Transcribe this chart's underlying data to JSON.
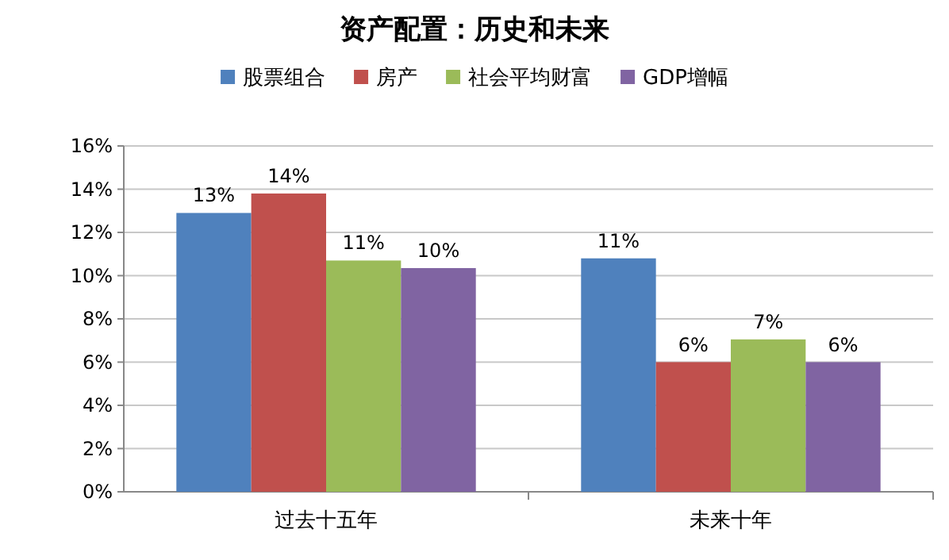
{
  "chart_data": {
    "type": "bar",
    "title": "资产配置：历史和未来",
    "categories": [
      "过去十五年",
      "未来十年"
    ],
    "series": [
      {
        "name": "股票组合",
        "color": "#4f81bd",
        "values": [
          12.9,
          10.8
        ],
        "value_labels": [
          "13%",
          "11%"
        ]
      },
      {
        "name": "房产",
        "color": "#c0504d",
        "values": [
          13.8,
          6.0
        ],
        "value_labels": [
          "14%",
          "6%"
        ]
      },
      {
        "name": "社会平均财富",
        "color": "#9bbb59",
        "values": [
          10.7,
          7.05
        ],
        "value_labels": [
          "11%",
          "7%"
        ]
      },
      {
        "name": "GDP增幅",
        "color": "#8064a2",
        "values": [
          10.35,
          6.0
        ],
        "value_labels": [
          "10%",
          "6%"
        ]
      }
    ],
    "ylim": [
      0,
      16
    ],
    "yticks": [
      {
        "value": 0,
        "label": "0%"
      },
      {
        "value": 2,
        "label": "2%"
      },
      {
        "value": 4,
        "label": "4%"
      },
      {
        "value": 6,
        "label": "6%"
      },
      {
        "value": 8,
        "label": "8%"
      },
      {
        "value": 10,
        "label": "10%"
      },
      {
        "value": 12,
        "label": "12%"
      },
      {
        "value": 14,
        "label": "14%"
      },
      {
        "value": 16,
        "label": "16%"
      }
    ],
    "grid": "y",
    "legend": "top"
  }
}
